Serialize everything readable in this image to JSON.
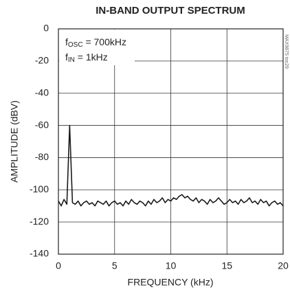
{
  "chart_data": {
    "type": "line",
    "title": "IN-BAND OUTPUT SPECTRUM",
    "xlabel": "FREQUENCY (kHz)",
    "ylabel": "AMPLITUDE (dBV)",
    "side_label": "MAX9875 toc29",
    "annotations": [
      {
        "main": "f",
        "sub": "OSC",
        "rest": " = 700kHz"
      },
      {
        "main": "f",
        "sub": "IN",
        "rest": " = 1kHz"
      }
    ],
    "xlim": [
      0,
      20
    ],
    "xticks": [
      0,
      5,
      10,
      15,
      20
    ],
    "ylim": [
      -140,
      0
    ],
    "yticks": [
      0,
      -20,
      -40,
      -60,
      -80,
      -100,
      -120,
      -140
    ],
    "grid": true,
    "x": [
      0,
      0.25,
      0.5,
      0.75,
      1,
      1.25,
      1.5,
      1.75,
      2,
      2.25,
      2.5,
      2.75,
      3,
      3.25,
      3.5,
      3.75,
      4,
      4.25,
      4.5,
      4.75,
      5,
      5.25,
      5.5,
      5.75,
      6,
      6.25,
      6.5,
      6.75,
      7,
      7.25,
      7.5,
      7.75,
      8,
      8.25,
      8.5,
      8.75,
      9,
      9.25,
      9.5,
      9.75,
      10,
      10.25,
      10.5,
      10.75,
      11,
      11.25,
      11.5,
      11.75,
      12,
      12.25,
      12.5,
      12.75,
      13,
      13.25,
      13.5,
      13.75,
      14,
      14.25,
      14.5,
      14.75,
      15,
      15.25,
      15.5,
      15.75,
      16,
      16.25,
      16.5,
      16.75,
      17,
      17.25,
      17.5,
      17.75,
      18,
      18.25,
      18.5,
      18.75,
      19,
      19.25,
      19.5,
      19.75,
      20
    ],
    "series": [
      {
        "color": "#1a1a1a",
        "values": [
          -107,
          -110,
          -106,
          -109,
          -60,
          -108,
          -109,
          -107,
          -110,
          -108,
          -107,
          -109,
          -108,
          -110,
          -107,
          -108,
          -109,
          -107,
          -110,
          -108,
          -107,
          -109,
          -108,
          -110,
          -107,
          -109,
          -106,
          -108,
          -109,
          -107,
          -108,
          -110,
          -107,
          -109,
          -106,
          -108,
          -107,
          -105,
          -108,
          -106,
          -107,
          -105,
          -106,
          -104,
          -103,
          -105,
          -104,
          -106,
          -107,
          -105,
          -108,
          -106,
          -107,
          -109,
          -106,
          -108,
          -107,
          -105,
          -107,
          -109,
          -108,
          -106,
          -108,
          -107,
          -109,
          -106,
          -108,
          -107,
          -105,
          -108,
          -107,
          -109,
          -106,
          -108,
          -107,
          -110,
          -108,
          -107,
          -109,
          -108,
          -110
        ]
      }
    ]
  }
}
